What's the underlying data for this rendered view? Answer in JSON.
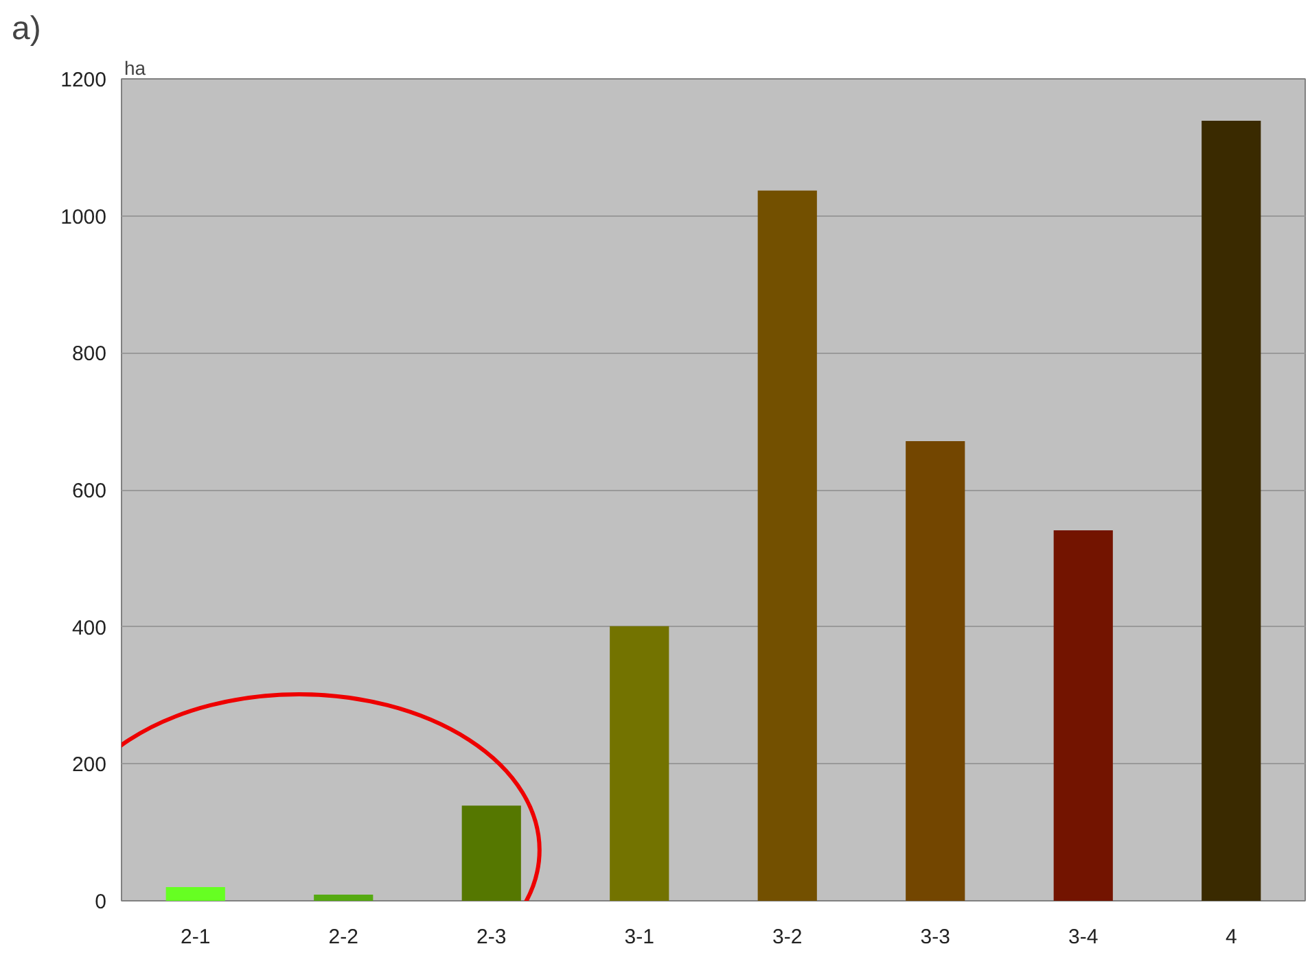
{
  "chart_data": {
    "type": "bar",
    "title": "a)",
    "ylabel": "ha",
    "categories": [
      "2-1",
      "2-2",
      "2-3",
      "3-1",
      "3-2",
      "3-3",
      "3-4",
      "4"
    ],
    "values": [
      20,
      9,
      139,
      401,
      1037,
      671,
      541,
      1139
    ],
    "colors": [
      "#66ff22",
      "#55aa11",
      "#557700",
      "#737300",
      "#735000",
      "#734600",
      "#731400",
      "#3a2a00"
    ],
    "ylim": [
      0,
      1200
    ],
    "yticks": [
      0,
      200,
      400,
      600,
      800,
      1000,
      1200
    ],
    "grid": "y"
  }
}
